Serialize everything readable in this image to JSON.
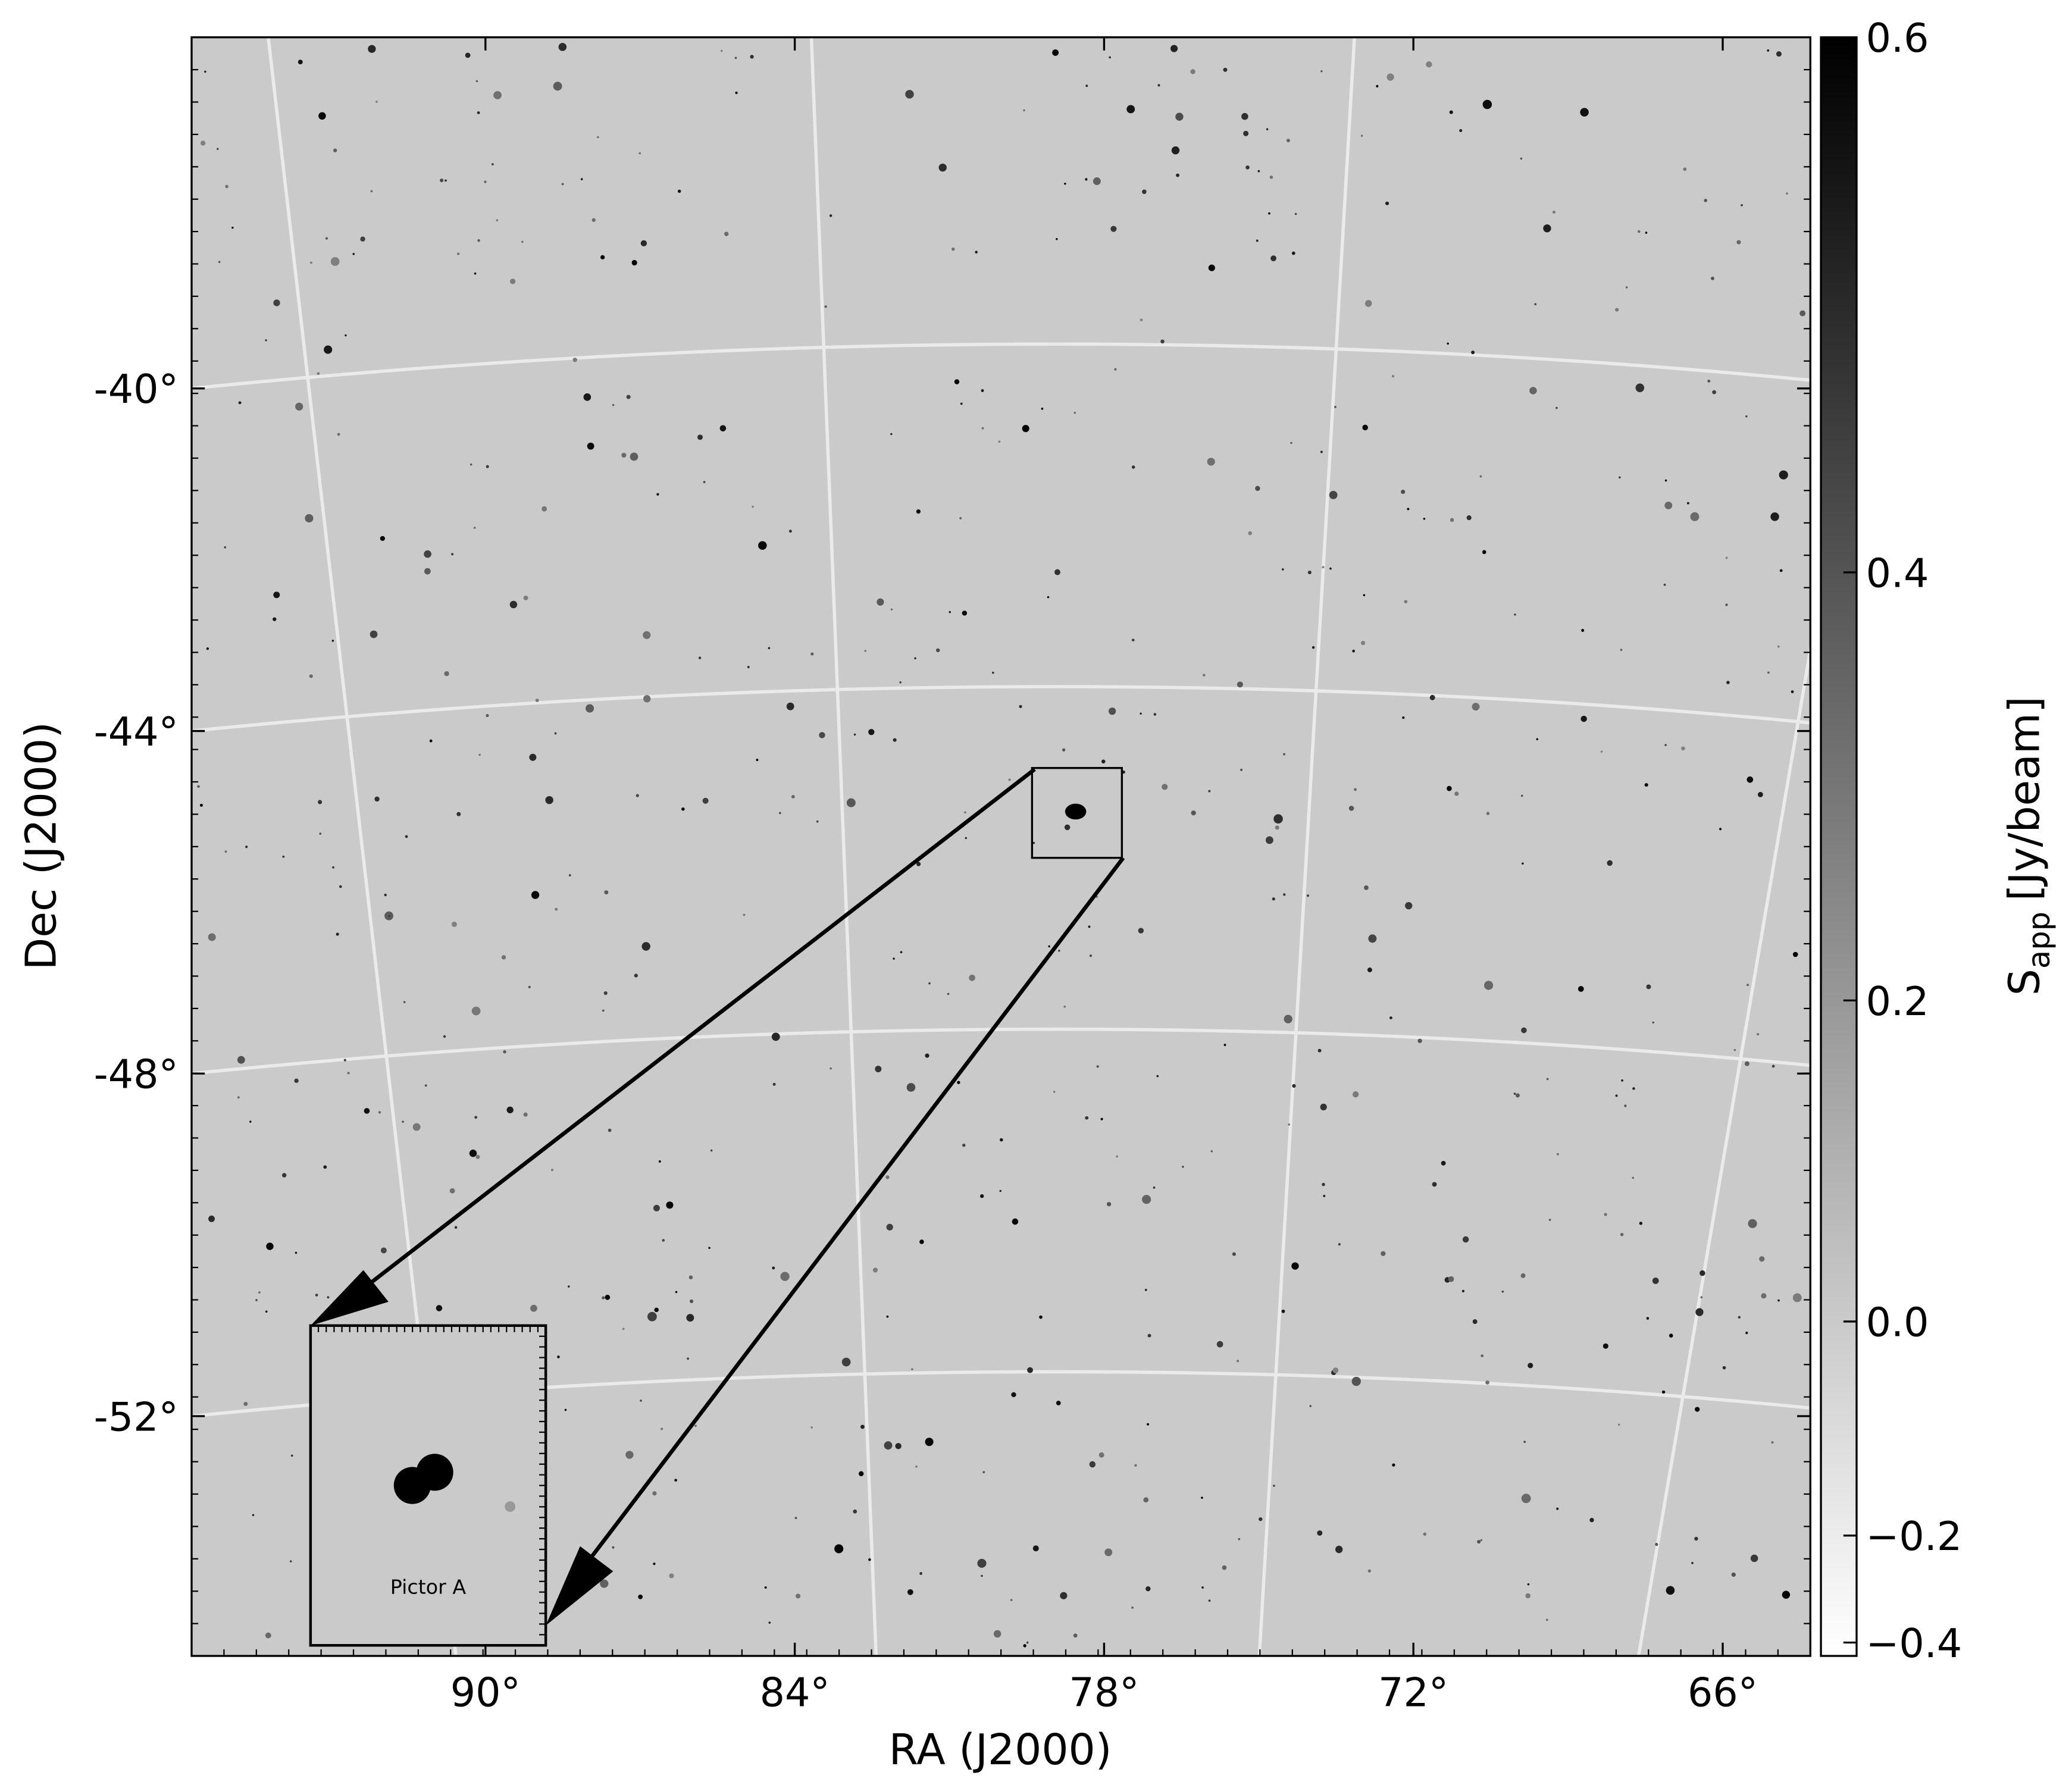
{
  "chart_data": {
    "type": "skymap",
    "xlabel": "RA (J2000)",
    "ylabel": "Dec (J2000)",
    "xlim": [
      95.7,
      64.3
    ],
    "ylim": [
      -54.8,
      -35.9
    ],
    "xticks": [
      {
        "value": 90,
        "label": "90°"
      },
      {
        "value": 84,
        "label": "84°"
      },
      {
        "value": 78,
        "label": "78°"
      },
      {
        "value": 72,
        "label": "72°"
      },
      {
        "value": 66,
        "label": "66°"
      }
    ],
    "yticks": [
      {
        "value": -40,
        "label": "-40°"
      },
      {
        "value": -44,
        "label": "-44°"
      },
      {
        "value": -48,
        "label": "-48°"
      },
      {
        "value": -52,
        "label": "-52°"
      }
    ],
    "grid": true,
    "colorbar": {
      "label": {
        "symbol": "S",
        "subscript": "app",
        "unit": "[Jy/beam]"
      },
      "clim": [
        -0.5,
        0.6
      ],
      "stretch": "squared",
      "ticks": [
        0.6,
        0.4,
        0.2,
        {
          "value": 0,
          "label": "0.0"
        },
        {
          "value": -0.2,
          "label": "−0.2"
        },
        {
          "value": -0.4,
          "label": "−0.4"
        }
      ]
    },
    "inset": {
      "label": "Pictor A"
    }
  }
}
